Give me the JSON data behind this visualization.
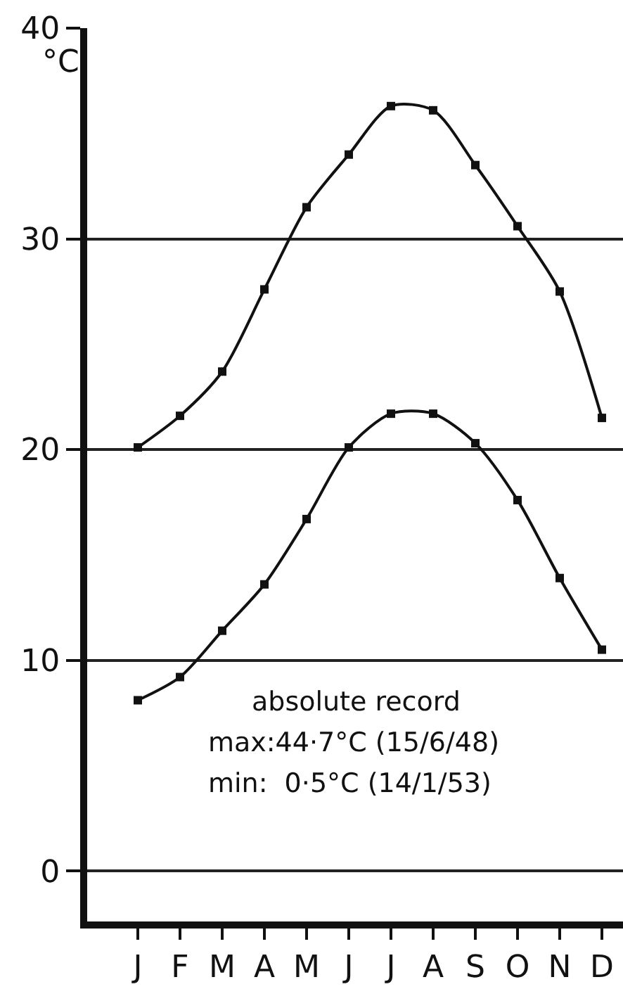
{
  "chart_data": {
    "type": "line",
    "ylabel": "°C",
    "categories": [
      "J",
      "F",
      "M",
      "A",
      "M",
      "J",
      "J",
      "A",
      "S",
      "O",
      "N",
      "D"
    ],
    "series": [
      {
        "color": "#111111",
        "values": [
          20.1,
          21.6,
          23.7,
          27.6,
          31.5,
          34.0,
          36.3,
          36.1,
          33.5,
          30.6,
          27.5,
          21.5
        ]
      },
      {
        "color": "#111111",
        "values": [
          8.1,
          9.2,
          11.4,
          13.6,
          16.7,
          20.1,
          21.7,
          21.7,
          20.3,
          17.6,
          13.9,
          10.5
        ]
      }
    ],
    "ylim": [
      -2.4,
      40
    ],
    "yticks": [
      0,
      10,
      20,
      30,
      40
    ],
    "grid": "y",
    "marker": "square",
    "line_style": "solid",
    "annotations": [
      "absolute record",
      "max:44·7°C (15/6/48)",
      "min:  0·5°C (14/1/53)"
    ]
  }
}
